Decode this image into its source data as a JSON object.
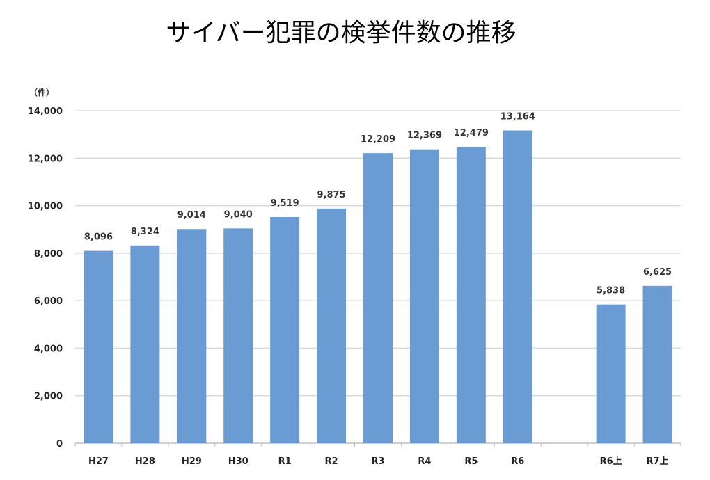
{
  "chart_data": {
    "type": "bar",
    "title": "サイバー犯罪の検挙件数の推移",
    "ylabel": "（件）",
    "xlabel": "",
    "categories": [
      "H27",
      "H28",
      "H29",
      "H30",
      "R1",
      "R2",
      "R3",
      "R4",
      "R5",
      "R6",
      "",
      "R6上",
      "R7上"
    ],
    "values": [
      8096,
      8324,
      9014,
      9040,
      9519,
      9875,
      12209,
      12369,
      12479,
      13164,
      null,
      5838,
      6625
    ],
    "data_labels": [
      "8,096",
      "8,324",
      "9,014",
      "9,040",
      "9,519",
      "9,875",
      "12,209",
      "12,369",
      "12,479",
      "13,164",
      "",
      "5,838",
      "6,625"
    ],
    "ylim": [
      0,
      14000
    ],
    "yticks": [
      "0",
      "2,000",
      "4,000",
      "6,000",
      "8,000",
      "10,000",
      "12,000",
      "14,000"
    ],
    "grid": true,
    "legend": "none",
    "bar_color": "#6a9bd2"
  }
}
